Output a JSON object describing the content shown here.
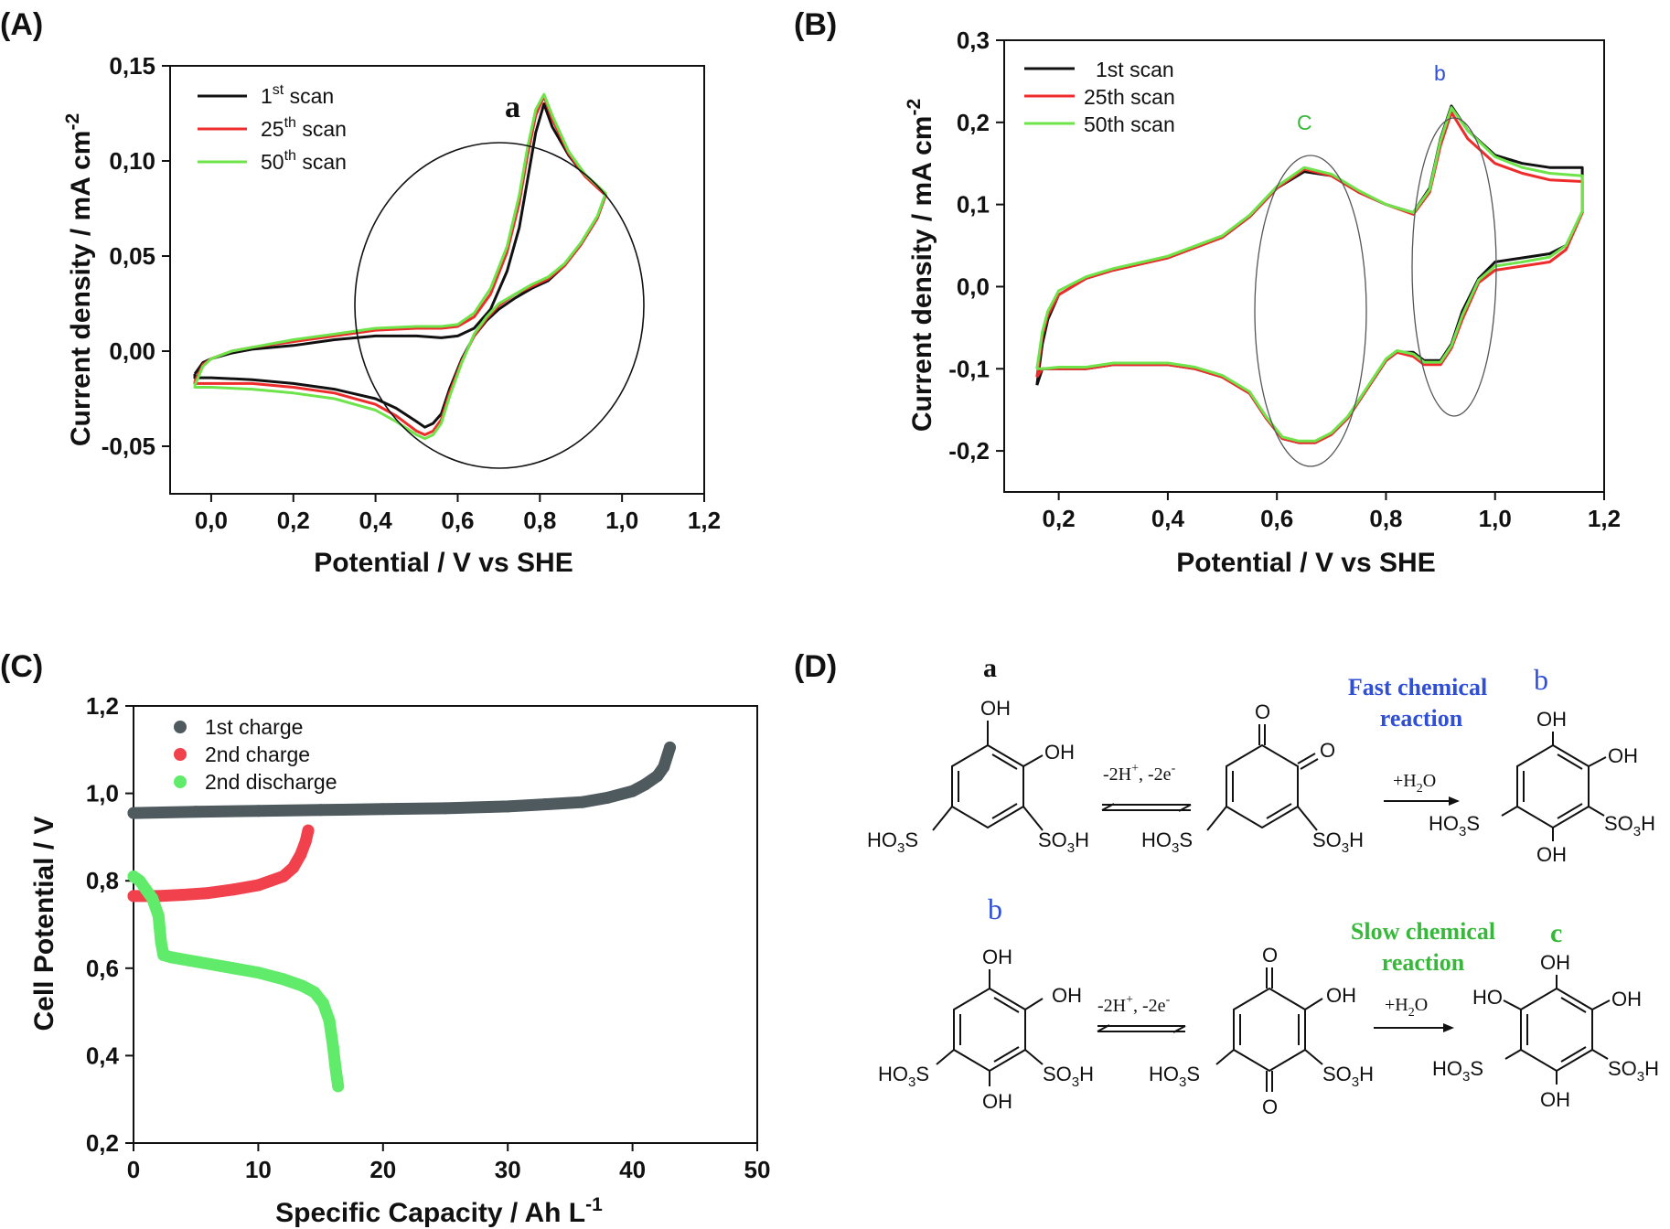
{
  "colors": {
    "black": "#111111",
    "red": "#ee2c2c",
    "green": "#6fe34a",
    "gray": "#4f5a5e",
    "pink": "#f0414d",
    "lightgreen": "#60ec6a",
    "blue": "#2f4fd6",
    "darkgreen": "#38b83a"
  },
  "chart_data": [
    {
      "panel": "(A)",
      "type": "line",
      "xlabel": "Potential / V vs SHE",
      "ylabel": "Current density / mA cm",
      "ylabel_sup": "-2",
      "xlim": [
        -0.1,
        1.2
      ],
      "ylim": [
        -0.075,
        0.15
      ],
      "xticks": [
        "0,0",
        "0,2",
        "0,4",
        "0,6",
        "0,8",
        "1,0",
        "1,2"
      ],
      "yticks": [
        "-0,05",
        "0,00",
        "0,05",
        "0,10",
        "0,15"
      ],
      "legend": [
        {
          "base": "1",
          "sup": "st",
          "rest": " scan"
        },
        {
          "base": "25",
          "sup": "th",
          "rest": " scan"
        },
        {
          "base": "50",
          "sup": "th",
          "rest": " scan"
        }
      ],
      "annotation": "a",
      "series": [
        {
          "name": "1st scan",
          "color": "black",
          "x": [
            -0.04,
            -0.02,
            0.0,
            0.05,
            0.1,
            0.2,
            0.3,
            0.4,
            0.5,
            0.56,
            0.6,
            0.64,
            0.68,
            0.72,
            0.75,
            0.77,
            0.79,
            0.81,
            0.83,
            0.87,
            0.91,
            0.95,
            0.96,
            0.94,
            0.9,
            0.86,
            0.82,
            0.78,
            0.74,
            0.7,
            0.67,
            0.64,
            0.61,
            0.58,
            0.56,
            0.54,
            0.52,
            0.5,
            0.45,
            0.4,
            0.3,
            0.2,
            0.1,
            0.0,
            -0.04,
            -0.04
          ],
          "y": [
            -0.012,
            -0.006,
            -0.004,
            -0.001,
            0.001,
            0.003,
            0.006,
            0.008,
            0.008,
            0.007,
            0.008,
            0.012,
            0.022,
            0.042,
            0.065,
            0.09,
            0.115,
            0.13,
            0.118,
            0.103,
            0.092,
            0.084,
            0.082,
            0.07,
            0.056,
            0.045,
            0.037,
            0.033,
            0.028,
            0.022,
            0.016,
            0.008,
            -0.004,
            -0.02,
            -0.033,
            -0.038,
            -0.04,
            -0.037,
            -0.03,
            -0.025,
            -0.02,
            -0.017,
            -0.015,
            -0.014,
            -0.014,
            -0.012
          ]
        },
        {
          "name": "25th scan",
          "color": "red",
          "x": [
            -0.04,
            -0.02,
            0.0,
            0.05,
            0.1,
            0.2,
            0.3,
            0.4,
            0.5,
            0.56,
            0.6,
            0.64,
            0.68,
            0.72,
            0.75,
            0.77,
            0.79,
            0.81,
            0.83,
            0.87,
            0.91,
            0.95,
            0.96,
            0.94,
            0.9,
            0.86,
            0.82,
            0.78,
            0.74,
            0.7,
            0.67,
            0.64,
            0.61,
            0.58,
            0.56,
            0.54,
            0.52,
            0.5,
            0.45,
            0.4,
            0.3,
            0.2,
            0.1,
            0.0,
            -0.04,
            -0.04
          ],
          "y": [
            -0.016,
            -0.007,
            -0.004,
            0.0,
            0.002,
            0.005,
            0.008,
            0.011,
            0.012,
            0.012,
            0.013,
            0.018,
            0.03,
            0.052,
            0.078,
            0.103,
            0.124,
            0.134,
            0.122,
            0.104,
            0.092,
            0.084,
            0.082,
            0.07,
            0.056,
            0.045,
            0.038,
            0.034,
            0.03,
            0.024,
            0.017,
            0.008,
            -0.005,
            -0.022,
            -0.036,
            -0.042,
            -0.044,
            -0.042,
            -0.034,
            -0.028,
            -0.022,
            -0.019,
            -0.017,
            -0.017,
            -0.017,
            -0.016
          ]
        },
        {
          "name": "50th scan",
          "color": "green",
          "x": [
            -0.04,
            -0.02,
            0.0,
            0.05,
            0.1,
            0.2,
            0.3,
            0.4,
            0.5,
            0.56,
            0.6,
            0.64,
            0.68,
            0.72,
            0.75,
            0.77,
            0.79,
            0.81,
            0.83,
            0.87,
            0.91,
            0.95,
            0.96,
            0.94,
            0.9,
            0.86,
            0.82,
            0.78,
            0.74,
            0.7,
            0.67,
            0.64,
            0.61,
            0.58,
            0.56,
            0.54,
            0.52,
            0.5,
            0.45,
            0.4,
            0.3,
            0.2,
            0.1,
            0.0,
            -0.04,
            -0.04
          ],
          "y": [
            -0.018,
            -0.008,
            -0.004,
            0.0,
            0.002,
            0.006,
            0.009,
            0.012,
            0.013,
            0.013,
            0.014,
            0.02,
            0.033,
            0.055,
            0.082,
            0.107,
            0.127,
            0.135,
            0.124,
            0.105,
            0.093,
            0.085,
            0.083,
            0.071,
            0.057,
            0.046,
            0.039,
            0.035,
            0.03,
            0.025,
            0.018,
            0.009,
            -0.006,
            -0.024,
            -0.038,
            -0.044,
            -0.046,
            -0.044,
            -0.037,
            -0.031,
            -0.025,
            -0.022,
            -0.02,
            -0.019,
            -0.019,
            -0.018
          ]
        }
      ]
    },
    {
      "panel": "(B)",
      "type": "line",
      "xlabel": "Potential / V vs SHE",
      "ylabel": "Current density / mA cm",
      "ylabel_sup": "-2",
      "xlim": [
        0.1,
        1.2
      ],
      "ylim": [
        -0.25,
        0.3
      ],
      "xticks": [
        "0,2",
        "0,4",
        "0,6",
        "0,8",
        "1,0",
        "1,2"
      ],
      "yticks": [
        "-0,2",
        "-0,1",
        "0,0",
        "0,1",
        "0,2",
        "0,3"
      ],
      "legend": [
        {
          "base": "1st scan",
          "sup": "",
          "rest": ""
        },
        {
          "base": "25th scan",
          "sup": "",
          "rest": ""
        },
        {
          "base": "50th scan",
          "sup": "",
          "rest": ""
        }
      ],
      "annotations": [
        "C",
        "b"
      ],
      "series": [
        {
          "name": "1st scan",
          "color": "black",
          "x": [
            0.16,
            0.17,
            0.18,
            0.2,
            0.25,
            0.3,
            0.4,
            0.5,
            0.55,
            0.6,
            0.65,
            0.7,
            0.75,
            0.8,
            0.85,
            0.88,
            0.9,
            0.92,
            0.95,
            1.0,
            1.05,
            1.1,
            1.16,
            1.16,
            1.13,
            1.1,
            1.05,
            1.0,
            0.97,
            0.94,
            0.92,
            0.9,
            0.87,
            0.85,
            0.82,
            0.8,
            0.77,
            0.73,
            0.7,
            0.67,
            0.64,
            0.61,
            0.58,
            0.55,
            0.5,
            0.45,
            0.4,
            0.35,
            0.3,
            0.25,
            0.2,
            0.17,
            0.16
          ],
          "y": [
            -0.12,
            -0.07,
            -0.04,
            -0.01,
            0.01,
            0.02,
            0.035,
            0.06,
            0.085,
            0.12,
            0.14,
            0.135,
            0.115,
            0.1,
            0.09,
            0.12,
            0.18,
            0.22,
            0.19,
            0.16,
            0.15,
            0.145,
            0.145,
            0.09,
            0.05,
            0.04,
            0.035,
            0.03,
            0.01,
            -0.03,
            -0.07,
            -0.09,
            -0.09,
            -0.08,
            -0.08,
            -0.09,
            -0.12,
            -0.16,
            -0.18,
            -0.19,
            -0.19,
            -0.185,
            -0.16,
            -0.13,
            -0.11,
            -0.1,
            -0.095,
            -0.095,
            -0.095,
            -0.1,
            -0.1,
            -0.1,
            -0.12
          ]
        },
        {
          "name": "25th scan",
          "color": "red",
          "x": [
            0.16,
            0.17,
            0.18,
            0.2,
            0.25,
            0.3,
            0.4,
            0.5,
            0.55,
            0.6,
            0.65,
            0.7,
            0.75,
            0.8,
            0.85,
            0.88,
            0.9,
            0.92,
            0.95,
            1.0,
            1.05,
            1.1,
            1.16,
            1.16,
            1.13,
            1.1,
            1.05,
            1.0,
            0.97,
            0.94,
            0.92,
            0.9,
            0.87,
            0.85,
            0.82,
            0.8,
            0.77,
            0.73,
            0.7,
            0.67,
            0.64,
            0.61,
            0.58,
            0.55,
            0.5,
            0.45,
            0.4,
            0.35,
            0.3,
            0.25,
            0.2,
            0.17,
            0.16
          ],
          "y": [
            -0.11,
            -0.06,
            -0.035,
            -0.01,
            0.01,
            0.02,
            0.035,
            0.06,
            0.085,
            0.12,
            0.143,
            0.135,
            0.115,
            0.1,
            0.088,
            0.115,
            0.172,
            0.212,
            0.18,
            0.15,
            0.138,
            0.13,
            0.128,
            0.09,
            0.045,
            0.03,
            0.025,
            0.02,
            0.005,
            -0.04,
            -0.075,
            -0.095,
            -0.095,
            -0.085,
            -0.08,
            -0.09,
            -0.12,
            -0.16,
            -0.18,
            -0.19,
            -0.19,
            -0.185,
            -0.16,
            -0.13,
            -0.11,
            -0.1,
            -0.095,
            -0.095,
            -0.095,
            -0.1,
            -0.1,
            -0.1,
            -0.11
          ]
        },
        {
          "name": "50th scan",
          "color": "green",
          "x": [
            0.16,
            0.17,
            0.18,
            0.2,
            0.25,
            0.3,
            0.4,
            0.5,
            0.55,
            0.6,
            0.65,
            0.7,
            0.75,
            0.8,
            0.85,
            0.88,
            0.9,
            0.92,
            0.95,
            1.0,
            1.05,
            1.1,
            1.16,
            1.16,
            1.13,
            1.1,
            1.05,
            1.0,
            0.97,
            0.94,
            0.92,
            0.9,
            0.87,
            0.85,
            0.82,
            0.8,
            0.77,
            0.73,
            0.7,
            0.67,
            0.64,
            0.61,
            0.58,
            0.55,
            0.5,
            0.45,
            0.4,
            0.35,
            0.3,
            0.25,
            0.2,
            0.17,
            0.16
          ],
          "y": [
            -0.1,
            -0.055,
            -0.03,
            -0.005,
            0.012,
            0.022,
            0.037,
            0.062,
            0.087,
            0.122,
            0.145,
            0.137,
            0.117,
            0.1,
            0.09,
            0.118,
            0.178,
            0.218,
            0.19,
            0.158,
            0.145,
            0.138,
            0.135,
            0.092,
            0.05,
            0.036,
            0.03,
            0.025,
            0.008,
            -0.035,
            -0.072,
            -0.092,
            -0.092,
            -0.082,
            -0.078,
            -0.088,
            -0.118,
            -0.158,
            -0.178,
            -0.188,
            -0.188,
            -0.183,
            -0.158,
            -0.128,
            -0.108,
            -0.098,
            -0.093,
            -0.093,
            -0.093,
            -0.098,
            -0.098,
            -0.1,
            -0.1
          ]
        }
      ]
    },
    {
      "panel": "(C)",
      "type": "scatter",
      "xlabel": "Specific Capacity / Ah L",
      "xlabel_sup": "-1",
      "ylabel": "Cell Potential / V",
      "xlim": [
        0,
        50
      ],
      "ylim": [
        0.2,
        1.2
      ],
      "xticks": [
        "0",
        "10",
        "20",
        "30",
        "40",
        "50"
      ],
      "yticks": [
        "0,2",
        "0,4",
        "0,6",
        "0,8",
        "1,0",
        "1,2"
      ],
      "legend": [
        "1st charge",
        "2nd charge",
        "2nd discharge"
      ],
      "series": [
        {
          "name": "1st charge",
          "color": "gray",
          "x": [
            0,
            5,
            10,
            15,
            20,
            25,
            30,
            33,
            36,
            38,
            40,
            41,
            42,
            42.5,
            43
          ],
          "y": [
            0.955,
            0.958,
            0.96,
            0.962,
            0.964,
            0.966,
            0.97,
            0.975,
            0.98,
            0.99,
            1.005,
            1.02,
            1.04,
            1.06,
            1.105
          ]
        },
        {
          "name": "2nd charge",
          "color": "pink",
          "x": [
            0,
            2,
            4,
            6,
            8,
            10,
            11,
            12,
            12.8,
            13.4,
            13.8,
            14
          ],
          "y": [
            0.765,
            0.765,
            0.768,
            0.772,
            0.78,
            0.79,
            0.8,
            0.81,
            0.83,
            0.86,
            0.89,
            0.915
          ]
        },
        {
          "name": "2nd discharge",
          "color": "lightgreen",
          "x": [
            0,
            0.5,
            1,
            1.5,
            2,
            2.2,
            2.4,
            3,
            5,
            8,
            10,
            12,
            13.5,
            14.5,
            15.2,
            15.7,
            16,
            16.2,
            16.4
          ],
          "y": [
            0.81,
            0.8,
            0.78,
            0.76,
            0.72,
            0.66,
            0.63,
            0.625,
            0.615,
            0.6,
            0.59,
            0.575,
            0.56,
            0.545,
            0.52,
            0.48,
            0.42,
            0.37,
            0.33
          ]
        }
      ]
    }
  ],
  "panel_d": {
    "label": "(D)",
    "row1": {
      "start_label": "a",
      "end_label": "b",
      "reaction_title_1": "Fast chemical",
      "reaction_title_2": "reaction",
      "step1_reagent": "-2H",
      "step1_sup": "+",
      "step1_rest": ", -2e",
      "step1_sup2": "-",
      "step2_reagent": "+H",
      "step2_sub": "2",
      "step2_rest": "O",
      "mol1": {
        "oh_top": "OH",
        "oh_right": "OH",
        "left_group": "HO",
        "left_sub": "3",
        "left_rest": "S",
        "right_group": "SO",
        "right_sub": "3",
        "right_rest": "H"
      },
      "mol2": {
        "o_top": "O",
        "o_right": "O",
        "left_group": "HO",
        "left_sub": "3",
        "left_rest": "S",
        "right_group": "SO",
        "right_sub": "3",
        "right_rest": "H"
      },
      "mol3": {
        "oh_top": "OH",
        "oh_right": "OH",
        "oh_bottom": "OH",
        "left_group": "HO",
        "left_sub": "3",
        "left_rest": "S",
        "right_group": "SO",
        "right_sub": "3",
        "right_rest": "H"
      }
    },
    "row2": {
      "start_label": "b",
      "end_label": "c",
      "reaction_title_1": "Slow chemical",
      "reaction_title_2": "reaction",
      "step1_reagent": "-2H",
      "step1_sup": "+",
      "step1_rest": ", -2e",
      "step1_sup2": "-",
      "step2_reagent": "+H",
      "step2_sub": "2",
      "step2_rest": "O",
      "mol1": {
        "oh_top": "OH",
        "oh_right": "OH",
        "oh_bottom": "OH",
        "left_group": "HO",
        "left_sub": "3",
        "left_rest": "S",
        "right_group": "SO",
        "right_sub": "3",
        "right_rest": "H"
      },
      "mol2": {
        "o_top": "O",
        "oh_right": "OH",
        "o_bottom": "O",
        "left_group": "HO",
        "left_sub": "3",
        "left_rest": "S",
        "right_group": "SO",
        "right_sub": "3",
        "right_rest": "H"
      },
      "mol3": {
        "oh_top": "OH",
        "ho_left": "HO",
        "oh_right": "OH",
        "oh_bottom": "OH",
        "left_group": "HO",
        "left_sub": "3",
        "left_rest": "S",
        "right_group": "SO",
        "right_sub": "3",
        "right_rest": "H"
      }
    }
  }
}
